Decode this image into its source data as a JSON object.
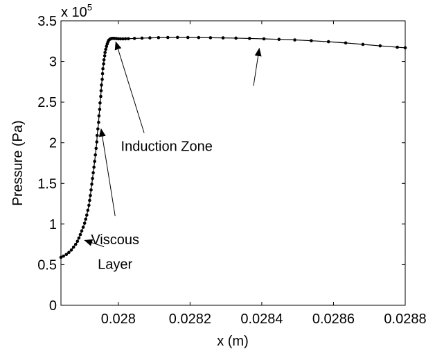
{
  "chart_data": {
    "type": "line",
    "title": "",
    "xlabel": "x (m)",
    "ylabel": "Pressure (Pa)",
    "xlim": [
      0.02784,
      0.0288
    ],
    "ylim": [
      0,
      350000
    ],
    "grid": false,
    "legend": "none",
    "y_multiplier": {
      "base": "x 10",
      "exponent": "5"
    },
    "x_ticks": [
      {
        "value": 0.028,
        "label": "0.028"
      },
      {
        "value": 0.0282,
        "label": "0.0282"
      },
      {
        "value": 0.0284,
        "label": "0.0284"
      },
      {
        "value": 0.0286,
        "label": "0.0286"
      },
      {
        "value": 0.0288,
        "label": "0.0288"
      }
    ],
    "y_ticks": [
      {
        "value": 0,
        "label": "0"
      },
      {
        "value": 50000,
        "label": "0.5"
      },
      {
        "value": 100000,
        "label": "1"
      },
      {
        "value": 150000,
        "label": "1.5"
      },
      {
        "value": 200000,
        "label": "2"
      },
      {
        "value": 250000,
        "label": "2.5"
      },
      {
        "value": 300000,
        "label": "3"
      },
      {
        "value": 350000,
        "label": "3.5"
      }
    ],
    "series": [
      {
        "color": "#000000",
        "marker": "dot",
        "points": [
          [
            0.02784,
            59000
          ],
          [
            0.027847,
            60500
          ],
          [
            0.027855,
            62500
          ],
          [
            0.027862,
            65000
          ],
          [
            0.027869,
            68000
          ],
          [
            0.027875,
            71500
          ],
          [
            0.027881,
            75000
          ],
          [
            0.027886,
            78800
          ],
          [
            0.02789,
            82800
          ],
          [
            0.027894,
            87000
          ],
          [
            0.027898,
            91500
          ],
          [
            0.027902,
            96000
          ],
          [
            0.027906,
            101000
          ],
          [
            0.027909,
            106000
          ],
          [
            0.027912,
            111000
          ],
          [
            0.027915,
            117000
          ],
          [
            0.027918,
            123000
          ],
          [
            0.02792,
            129000
          ],
          [
            0.027922,
            135000
          ],
          [
            0.027924,
            142000
          ],
          [
            0.027926,
            149000
          ],
          [
            0.027928,
            156000
          ],
          [
            0.02793,
            163000
          ],
          [
            0.027932,
            170000
          ],
          [
            0.027934,
            177000
          ],
          [
            0.027936,
            185000
          ],
          [
            0.027938,
            193000
          ],
          [
            0.02794,
            201000
          ],
          [
            0.027941,
            209000
          ],
          [
            0.027943,
            217000
          ],
          [
            0.027945,
            225000
          ],
          [
            0.027946,
            233000
          ],
          [
            0.027948,
            241000
          ],
          [
            0.027949,
            249000
          ],
          [
            0.027951,
            257000
          ],
          [
            0.027952,
            264000
          ],
          [
            0.027953,
            271000
          ],
          [
            0.027955,
            278000
          ],
          [
            0.027956,
            285000
          ],
          [
            0.027957,
            291000
          ],
          [
            0.027959,
            297000
          ],
          [
            0.02796,
            302000
          ],
          [
            0.027962,
            307000
          ],
          [
            0.027963,
            311000
          ],
          [
            0.027965,
            315000
          ],
          [
            0.027967,
            318500
          ],
          [
            0.027969,
            321500
          ],
          [
            0.027971,
            324000
          ],
          [
            0.027973,
            326000
          ],
          [
            0.027976,
            327200
          ],
          [
            0.027979,
            328000
          ],
          [
            0.027982,
            328300
          ],
          [
            0.027986,
            328400
          ],
          [
            0.02799,
            328300
          ],
          [
            0.027995,
            328100
          ],
          [
            0.028,
            327900
          ],
          [
            0.028006,
            327800
          ],
          [
            0.028013,
            327800
          ],
          [
            0.02802,
            327900
          ],
          [
            0.028028,
            328000
          ],
          [
            0.028045,
            328300
          ],
          [
            0.028066,
            328700
          ],
          [
            0.028088,
            329000
          ],
          [
            0.028112,
            329300
          ],
          [
            0.028138,
            329500
          ],
          [
            0.028165,
            329600
          ],
          [
            0.028194,
            329500
          ],
          [
            0.028224,
            329400
          ],
          [
            0.028257,
            329200
          ],
          [
            0.028292,
            329000
          ],
          [
            0.028328,
            328700
          ],
          [
            0.028366,
            328300
          ],
          [
            0.028406,
            327800
          ],
          [
            0.028448,
            327200
          ],
          [
            0.028492,
            326500
          ],
          [
            0.028538,
            325500
          ],
          [
            0.028586,
            324300
          ],
          [
            0.028634,
            322800
          ],
          [
            0.028682,
            321000
          ],
          [
            0.02873,
            319200
          ],
          [
            0.028778,
            317500
          ],
          [
            0.0288,
            316800
          ]
        ]
      }
    ],
    "annotations": [
      {
        "text": "Induction Zone",
        "anchor": [
          0.028135,
          190000
        ],
        "arrows": [
          {
            "from": [
              0.028072,
              212000
            ],
            "to": [
              0.027993,
              324000
            ]
          },
          {
            "from": [
              0.028377,
              270000
            ],
            "to": [
              0.028393,
              316000
            ]
          }
        ]
      },
      {
        "text": "Viscous",
        "anchor": [
          0.027991,
          75000
        ],
        "arrows": [
          {
            "from": [
              0.027991,
              110000
            ],
            "to": [
              0.027952,
              217000
            ]
          }
        ]
      },
      {
        "text": "Layer",
        "anchor": [
          0.027991,
          45000
        ],
        "arrows": [
          {
            "from": [
              0.02796,
              72000
            ],
            "to": [
              0.027906,
              80000
            ]
          }
        ]
      }
    ]
  }
}
